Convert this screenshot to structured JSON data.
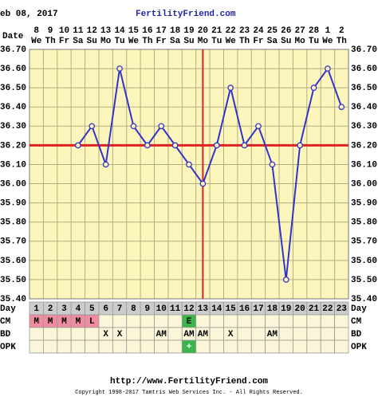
{
  "chart_data": {
    "type": "line",
    "header_date": "eb 08, 2017",
    "site": "FertilityFriend.com",
    "date_label": "Date",
    "categories": [
      "8",
      "9",
      "10",
      "11",
      "12",
      "13",
      "14",
      "15",
      "16",
      "17",
      "18",
      "19",
      "20",
      "21",
      "22",
      "23",
      "24",
      "25",
      "26",
      "27",
      "28",
      "1",
      "2"
    ],
    "weekdays": [
      "We",
      "Th",
      "Fr",
      "Sa",
      "Su",
      "Mo",
      "Tu",
      "We",
      "Th",
      "Fr",
      "Sa",
      "Su",
      "Mo",
      "Tu",
      "We",
      "Th",
      "Fr",
      "Sa",
      "Su",
      "Mo",
      "Tu",
      "We",
      "Th"
    ],
    "values": [
      null,
      null,
      null,
      36.2,
      36.3,
      36.1,
      36.6,
      36.3,
      36.2,
      36.3,
      36.2,
      36.1,
      36.0,
      36.2,
      36.5,
      36.2,
      36.3,
      36.1,
      35.5,
      36.2,
      36.5,
      36.6,
      36.4
    ],
    "color": "#3333cc",
    "ylim": [
      35.4,
      36.7
    ],
    "yticks": [
      {
        "value": 35.4,
        "label": "35.40"
      },
      {
        "value": 35.5,
        "label": "35.50"
      },
      {
        "value": 35.6,
        "label": "35.60"
      },
      {
        "value": 35.7,
        "label": "35.70"
      },
      {
        "value": 35.8,
        "label": "35.80"
      },
      {
        "value": 35.9,
        "label": "35.90"
      },
      {
        "value": 36.0,
        "label": "36.00"
      },
      {
        "value": 36.1,
        "label": "36.10"
      },
      {
        "value": 36.2,
        "label": "36.20"
      },
      {
        "value": 36.3,
        "label": "36.30"
      },
      {
        "value": 36.4,
        "label": "36.40"
      },
      {
        "value": 36.5,
        "label": "36.50"
      },
      {
        "value": 36.6,
        "label": "36.60"
      },
      {
        "value": 36.7,
        "label": "36.70"
      }
    ],
    "grid": true,
    "coverline": 36.2,
    "ovulation_day": 13,
    "marker_color": "#dd2222",
    "rows": [
      {
        "label": "Day",
        "cells": [
          1,
          2,
          3,
          4,
          5,
          6,
          7,
          8,
          9,
          10,
          11,
          12,
          13,
          14,
          15,
          16,
          17,
          18,
          19,
          20,
          21,
          22,
          23
        ]
      },
      {
        "label": "CM",
        "cells": [
          "M",
          "M",
          "M",
          "M",
          "L",
          null,
          null,
          null,
          null,
          null,
          null,
          "E",
          null,
          null,
          null,
          null,
          null,
          null,
          null,
          null,
          null,
          null,
          null
        ],
        "colors": [
          "#f08ca0",
          "#f08ca0",
          "#f08ca0",
          "#f08ca0",
          "#f08ca0",
          null,
          null,
          null,
          null,
          null,
          null,
          "#3cb44b",
          null,
          null,
          null,
          null,
          null,
          null,
          null,
          null,
          null,
          null,
          null
        ]
      },
      {
        "label": "BD",
        "cells": [
          null,
          null,
          null,
          null,
          null,
          "X",
          "X",
          null,
          null,
          "AM",
          null,
          "AM",
          "AM",
          null,
          "X",
          null,
          null,
          "AM",
          null,
          null,
          null,
          null,
          null
        ]
      },
      {
        "label": "OPK",
        "cells": [
          null,
          null,
          null,
          null,
          null,
          null,
          null,
          null,
          null,
          null,
          null,
          "+",
          null,
          null,
          null,
          null,
          null,
          null,
          null,
          null,
          null,
          null,
          null
        ],
        "colors": [
          null,
          null,
          null,
          null,
          null,
          null,
          null,
          null,
          null,
          null,
          null,
          "#3cb44b",
          null,
          null,
          null,
          null,
          null,
          null,
          null,
          null,
          null,
          null,
          null
        ]
      }
    ],
    "footer_url": "http://www.FertilityFriend.com",
    "copyright": "Copyright 1998-2017 Tamtris Web Services Inc. - All Rights Reserved."
  }
}
